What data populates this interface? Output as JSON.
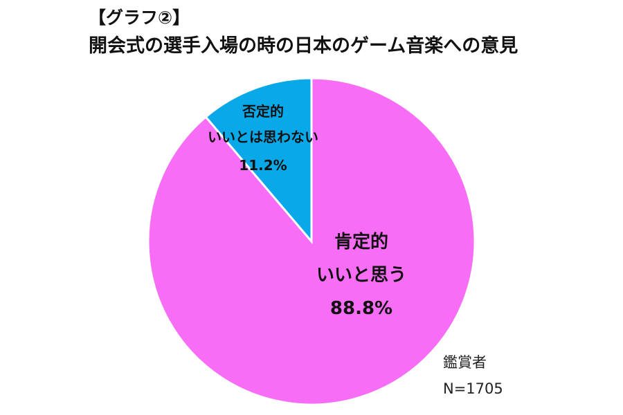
{
  "title_tag": "【グラフ②】",
  "title": "開会式の選手入場の時の日本のゲーム音楽への意見",
  "chart_data": {
    "type": "pie",
    "slices": [
      {
        "category": "肯定的",
        "label": "いいと思う",
        "value": 88.8,
        "value_label": "88.8%",
        "color": "#f86df6"
      },
      {
        "category": "否定的",
        "label": "いいとは思わない",
        "value": 11.2,
        "value_label": "11.2%",
        "color": "#09a8e8"
      }
    ],
    "start_angle_deg": 0,
    "direction": "clockwise",
    "slice_border_color": "#ffffff"
  },
  "notes": {
    "group": "鑑賞者",
    "sample": "N=1705"
  }
}
